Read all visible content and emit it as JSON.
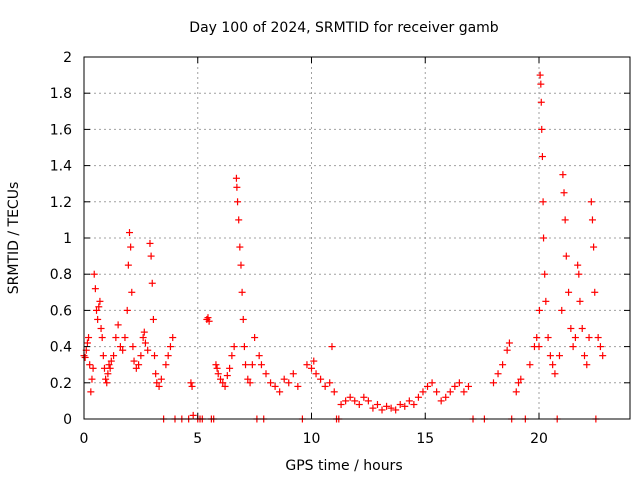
{
  "chart_data": {
    "type": "scatter",
    "title": "Day 100 of 2024, SRMTID for receiver gamb",
    "xlabel": "GPS time / hours",
    "ylabel": "SRMTID / TECUs",
    "xlim": [
      0,
      24
    ],
    "ylim": [
      0,
      2
    ],
    "xticks": [
      0,
      5,
      10,
      15,
      20
    ],
    "xtick_labels": [
      "0",
      "5",
      "10",
      "15",
      "20"
    ],
    "yticks": [
      0,
      0.2,
      0.4,
      0.6,
      0.8,
      1,
      1.2,
      1.4,
      1.6,
      1.8,
      2
    ],
    "ytick_labels": [
      "0",
      "0.2",
      "0.4",
      "0.6",
      "0.8",
      "1",
      "1.2",
      "1.4",
      "1.6",
      "1.8",
      "2"
    ],
    "grid": true,
    "marker": "+",
    "color": "#ff0000",
    "series": [
      {
        "name": "SRMTID",
        "points": [
          [
            0.0,
            0.35
          ],
          [
            0.05,
            0.34
          ],
          [
            0.1,
            0.38
          ],
          [
            0.15,
            0.42
          ],
          [
            0.2,
            0.45
          ],
          [
            0.25,
            0.3
          ],
          [
            0.3,
            0.15
          ],
          [
            0.35,
            0.22
          ],
          [
            0.4,
            0.28
          ],
          [
            0.45,
            0.8
          ],
          [
            0.5,
            0.72
          ],
          [
            0.55,
            0.6
          ],
          [
            0.6,
            0.55
          ],
          [
            0.65,
            0.62
          ],
          [
            0.7,
            0.65
          ],
          [
            0.75,
            0.5
          ],
          [
            0.8,
            0.45
          ],
          [
            0.85,
            0.35
          ],
          [
            0.9,
            0.28
          ],
          [
            0.95,
            0.22
          ],
          [
            1.0,
            0.2
          ],
          [
            1.05,
            0.25
          ],
          [
            1.1,
            0.3
          ],
          [
            1.15,
            0.28
          ],
          [
            1.2,
            0.32
          ],
          [
            1.3,
            0.35
          ],
          [
            1.4,
            0.45
          ],
          [
            1.5,
            0.52
          ],
          [
            1.6,
            0.4
          ],
          [
            1.7,
            0.38
          ],
          [
            1.8,
            0.45
          ],
          [
            1.9,
            0.6
          ],
          [
            1.95,
            0.85
          ],
          [
            2.0,
            1.03
          ],
          [
            2.05,
            0.95
          ],
          [
            2.1,
            0.7
          ],
          [
            2.15,
            0.4
          ],
          [
            2.2,
            0.32
          ],
          [
            2.3,
            0.28
          ],
          [
            2.4,
            0.3
          ],
          [
            2.5,
            0.35
          ],
          [
            2.6,
            0.45
          ],
          [
            2.65,
            0.48
          ],
          [
            2.7,
            0.42
          ],
          [
            2.8,
            0.38
          ],
          [
            2.9,
            0.97
          ],
          [
            2.95,
            0.9
          ],
          [
            3.0,
            0.75
          ],
          [
            3.05,
            0.55
          ],
          [
            3.1,
            0.35
          ],
          [
            3.15,
            0.25
          ],
          [
            3.2,
            0.2
          ],
          [
            3.3,
            0.18
          ],
          [
            3.4,
            0.22
          ],
          [
            3.5,
            0.0
          ],
          [
            3.6,
            0.3
          ],
          [
            3.7,
            0.35
          ],
          [
            3.8,
            0.4
          ],
          [
            3.9,
            0.45
          ],
          [
            4.0,
            0.0
          ],
          [
            4.3,
            0.0
          ],
          [
            4.6,
            0.0
          ],
          [
            4.7,
            0.2
          ],
          [
            4.75,
            0.18
          ],
          [
            4.8,
            0.02
          ],
          [
            5.0,
            0.0
          ],
          [
            5.1,
            0.0
          ],
          [
            5.2,
            0.0
          ],
          [
            5.4,
            0.55
          ],
          [
            5.45,
            0.56
          ],
          [
            5.5,
            0.54
          ],
          [
            5.6,
            0.0
          ],
          [
            5.7,
            0.0
          ],
          [
            5.8,
            0.3
          ],
          [
            5.85,
            0.28
          ],
          [
            5.9,
            0.25
          ],
          [
            6.0,
            0.22
          ],
          [
            6.1,
            0.2
          ],
          [
            6.2,
            0.18
          ],
          [
            6.3,
            0.24
          ],
          [
            6.4,
            0.28
          ],
          [
            6.5,
            0.35
          ],
          [
            6.6,
            0.4
          ],
          [
            6.7,
            1.33
          ],
          [
            6.72,
            1.28
          ],
          [
            6.75,
            1.2
          ],
          [
            6.8,
            1.1
          ],
          [
            6.85,
            0.95
          ],
          [
            6.9,
            0.85
          ],
          [
            6.95,
            0.7
          ],
          [
            7.0,
            0.55
          ],
          [
            7.05,
            0.4
          ],
          [
            7.1,
            0.3
          ],
          [
            7.2,
            0.22
          ],
          [
            7.3,
            0.2
          ],
          [
            7.4,
            0.3
          ],
          [
            7.5,
            0.45
          ],
          [
            7.6,
            0.0
          ],
          [
            7.7,
            0.35
          ],
          [
            7.8,
            0.3
          ],
          [
            7.9,
            0.0
          ],
          [
            8.0,
            0.25
          ],
          [
            8.2,
            0.2
          ],
          [
            8.4,
            0.18
          ],
          [
            8.6,
            0.15
          ],
          [
            8.8,
            0.22
          ],
          [
            9.0,
            0.2
          ],
          [
            9.2,
            0.25
          ],
          [
            9.4,
            0.18
          ],
          [
            9.6,
            0.0
          ],
          [
            9.8,
            0.3
          ],
          [
            10.0,
            0.28
          ],
          [
            10.1,
            0.32
          ],
          [
            10.2,
            0.25
          ],
          [
            10.4,
            0.22
          ],
          [
            10.6,
            0.18
          ],
          [
            10.8,
            0.2
          ],
          [
            10.9,
            0.4
          ],
          [
            11.0,
            0.15
          ],
          [
            11.1,
            0.0
          ],
          [
            11.2,
            0.0
          ],
          [
            11.3,
            0.08
          ],
          [
            11.5,
            0.1
          ],
          [
            11.7,
            0.12
          ],
          [
            11.9,
            0.1
          ],
          [
            12.1,
            0.08
          ],
          [
            12.3,
            0.12
          ],
          [
            12.5,
            0.1
          ],
          [
            12.7,
            0.06
          ],
          [
            12.9,
            0.08
          ],
          [
            13.1,
            0.05
          ],
          [
            13.3,
            0.07
          ],
          [
            13.5,
            0.06
          ],
          [
            13.7,
            0.05
          ],
          [
            13.9,
            0.08
          ],
          [
            14.1,
            0.07
          ],
          [
            14.3,
            0.1
          ],
          [
            14.5,
            0.08
          ],
          [
            14.7,
            0.12
          ],
          [
            14.9,
            0.15
          ],
          [
            15.1,
            0.18
          ],
          [
            15.3,
            0.2
          ],
          [
            15.5,
            0.15
          ],
          [
            15.7,
            0.1
          ],
          [
            15.9,
            0.12
          ],
          [
            16.1,
            0.15
          ],
          [
            16.3,
            0.18
          ],
          [
            16.5,
            0.2
          ],
          [
            16.7,
            0.15
          ],
          [
            16.9,
            0.18
          ],
          [
            17.1,
            0.0
          ],
          [
            17.6,
            0.0
          ],
          [
            18.0,
            0.2
          ],
          [
            18.2,
            0.25
          ],
          [
            18.4,
            0.3
          ],
          [
            18.6,
            0.38
          ],
          [
            18.7,
            0.42
          ],
          [
            18.8,
            0.0
          ],
          [
            19.0,
            0.15
          ],
          [
            19.1,
            0.2
          ],
          [
            19.2,
            0.22
          ],
          [
            19.4,
            0.0
          ],
          [
            19.6,
            0.3
          ],
          [
            19.8,
            0.4
          ],
          [
            19.9,
            0.45
          ],
          [
            20.0,
            0.4
          ],
          [
            20.02,
            0.6
          ],
          [
            20.05,
            1.9
          ],
          [
            20.08,
            1.85
          ],
          [
            20.1,
            1.75
          ],
          [
            20.12,
            1.6
          ],
          [
            20.15,
            1.45
          ],
          [
            20.18,
            1.2
          ],
          [
            20.2,
            1.0
          ],
          [
            20.25,
            0.8
          ],
          [
            20.3,
            0.65
          ],
          [
            20.4,
            0.45
          ],
          [
            20.5,
            0.35
          ],
          [
            20.6,
            0.3
          ],
          [
            20.7,
            0.25
          ],
          [
            20.8,
            0.0
          ],
          [
            20.9,
            0.35
          ],
          [
            21.0,
            0.6
          ],
          [
            21.05,
            1.35
          ],
          [
            21.1,
            1.25
          ],
          [
            21.15,
            1.1
          ],
          [
            21.2,
            0.9
          ],
          [
            21.3,
            0.7
          ],
          [
            21.4,
            0.5
          ],
          [
            21.5,
            0.4
          ],
          [
            21.6,
            0.45
          ],
          [
            21.7,
            0.85
          ],
          [
            21.75,
            0.8
          ],
          [
            21.8,
            0.65
          ],
          [
            21.9,
            0.5
          ],
          [
            22.0,
            0.35
          ],
          [
            22.1,
            0.3
          ],
          [
            22.2,
            0.45
          ],
          [
            22.3,
            1.2
          ],
          [
            22.35,
            1.1
          ],
          [
            22.4,
            0.95
          ],
          [
            22.45,
            0.7
          ],
          [
            22.5,
            0.0
          ],
          [
            22.6,
            0.45
          ],
          [
            22.7,
            0.4
          ],
          [
            22.8,
            0.35
          ]
        ]
      }
    ]
  }
}
